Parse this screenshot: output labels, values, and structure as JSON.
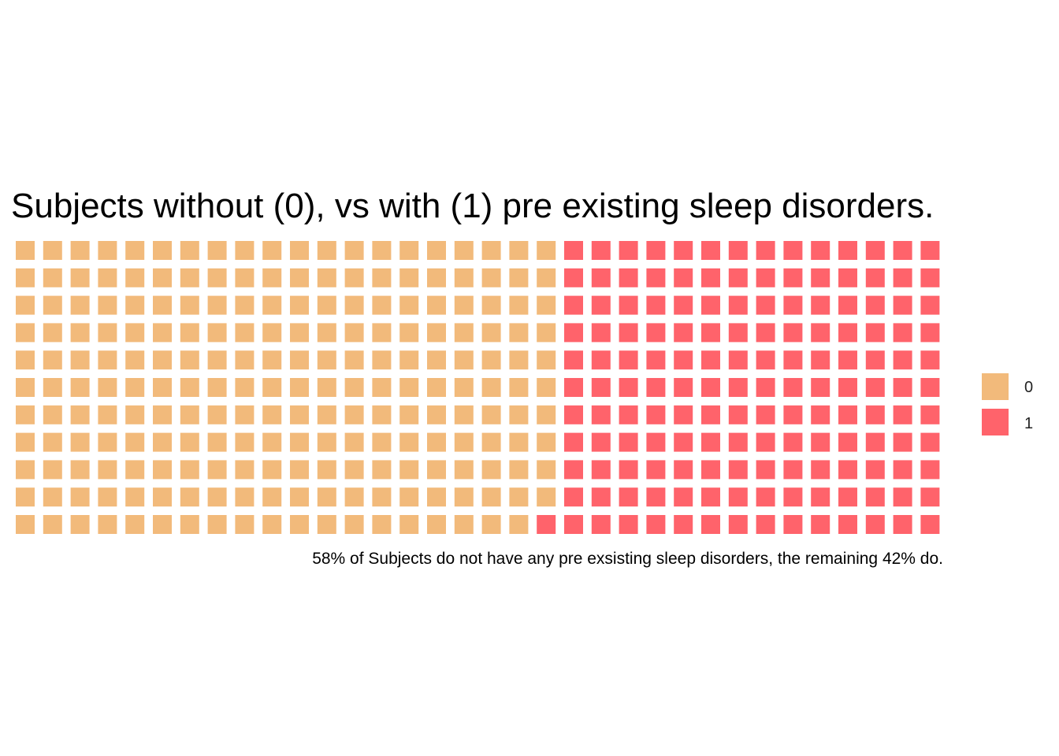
{
  "chart_data": {
    "type": "waffle",
    "title": "Subjects without (0), vs with (1) pre existing sleep disorders.",
    "caption": "58% of Subjects do not have any pre exsisting sleep disorders, the remaining 42% do.",
    "grid": false,
    "legend_position": "right",
    "rows": 11,
    "columns": 34,
    "fill_order": "column-major, top-to-bottom, left-to-right",
    "categories": [
      "0",
      "1"
    ],
    "values": [
      219,
      155
    ],
    "colors": [
      "#F2BA7B",
      "#FF636B"
    ],
    "legend": [
      {
        "label": "0",
        "color": "#F2BA7B"
      },
      {
        "label": "1",
        "color": "#FF636B"
      }
    ]
  }
}
